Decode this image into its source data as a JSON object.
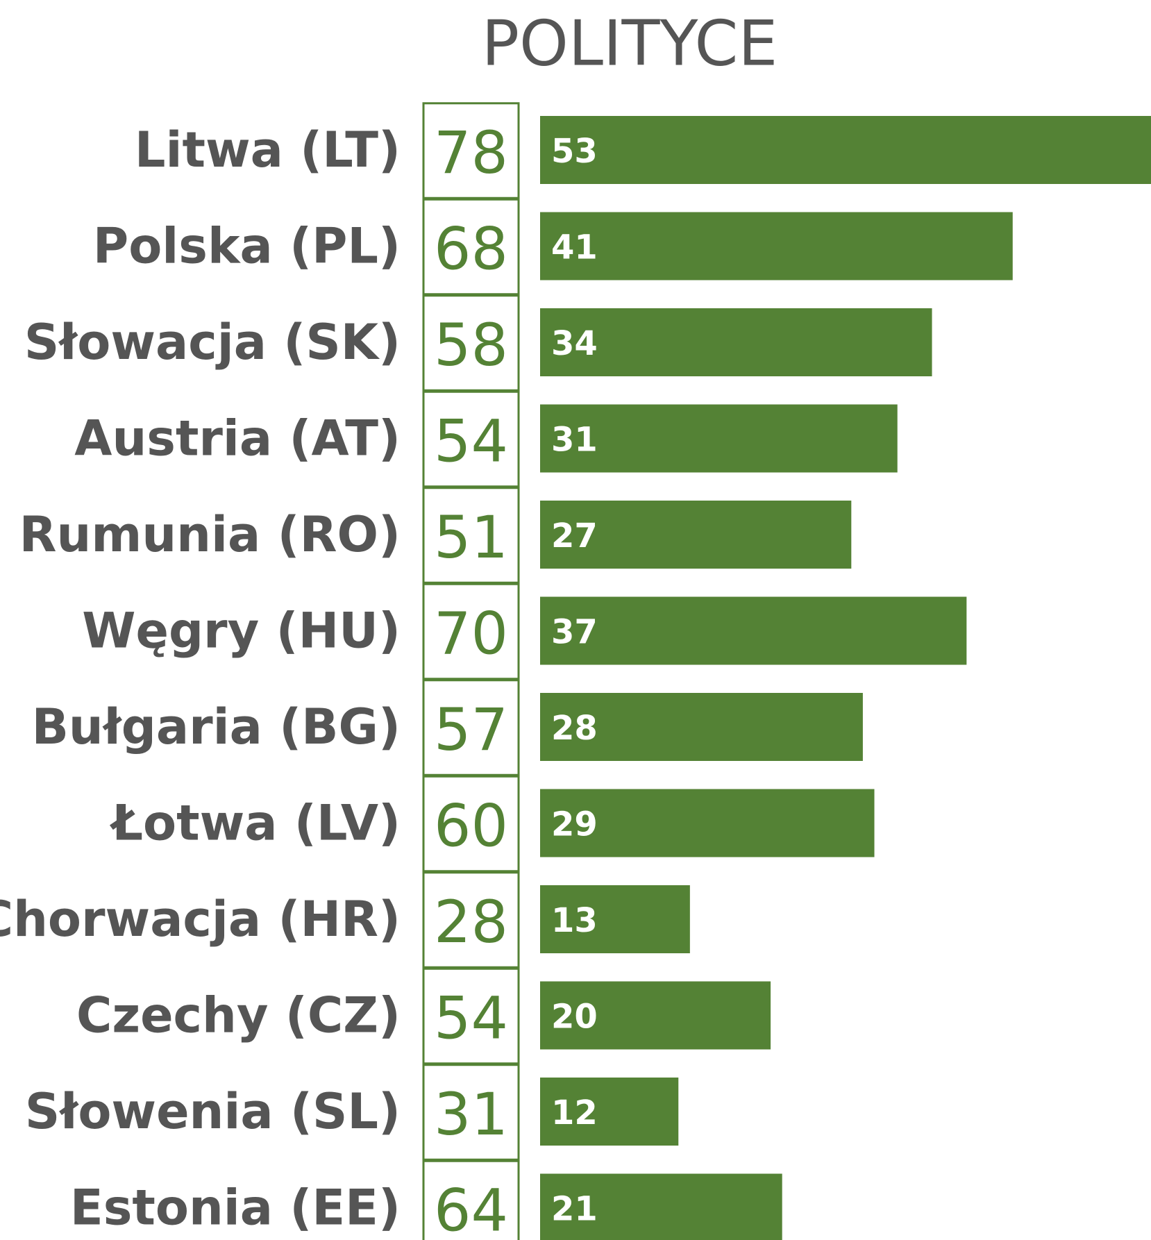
{
  "chart_data": {
    "type": "bar",
    "title": "POLITYCE",
    "categories": [
      "Litwa (LT)",
      "Polska (PL)",
      "Słowacja (SK)",
      "Austria (AT)",
      "Rumunia (RO)",
      "Węgry (HU)",
      "Bułgaria (BG)",
      "Łotwa (LV)",
      "Chorwacja (HR)",
      "Czechy (CZ)",
      "Słowenia (SL)",
      "Estonia (EE)"
    ],
    "series": [
      {
        "color": "#548235",
        "values": [
          78,
          68,
          58,
          54,
          51,
          70,
          57,
          60,
          28,
          54,
          31,
          64
        ]
      },
      {
        "color": "#548235",
        "values": [
          53,
          41,
          34,
          31,
          27,
          37,
          28,
          29,
          13,
          20,
          12,
          21
        ]
      }
    ]
  }
}
